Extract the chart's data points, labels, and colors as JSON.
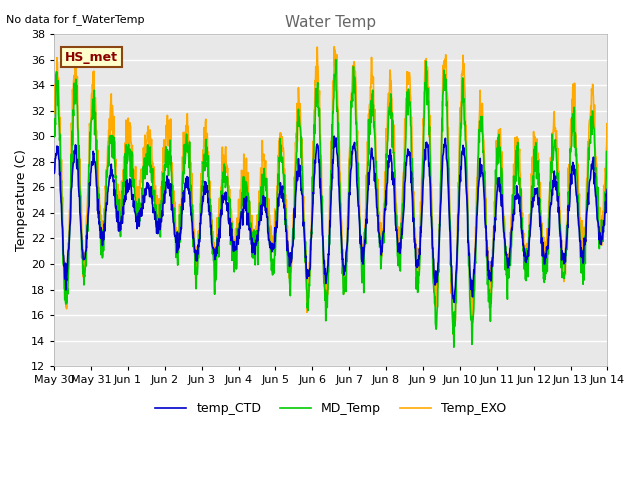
{
  "title": "Water Temp",
  "no_data_text": "No data for f_WaterTemp",
  "hs_met_label": "HS_met",
  "ylabel": "Temperature (C)",
  "ylim": [
    12,
    38
  ],
  "yticks": [
    12,
    14,
    16,
    18,
    20,
    22,
    24,
    26,
    28,
    30,
    32,
    34,
    36,
    38
  ],
  "background_color": "#ffffff",
  "plot_bg_color": "#e8e8e8",
  "grid_color": "#ffffff",
  "line_colors": {
    "temp_CTD": "#0000cc",
    "MD_Temp": "#00cc00",
    "Temp_EXO": "#ffaa00"
  },
  "legend_labels": [
    "temp_CTD",
    "MD_Temp",
    "Temp_EXO"
  ],
  "xtick_labels": [
    "May 30",
    "May 31",
    "Jun 1",
    "Jun 2",
    "Jun 3",
    "Jun 4",
    "Jun 5",
    "Jun 6",
    "Jun 7",
    "Jun 8",
    "Jun 9",
    "Jun 10",
    "Jun 11",
    "Jun 12",
    "Jun 13",
    "Jun 14"
  ],
  "title_color": "#666666",
  "title_fontsize": 11,
  "ylabel_fontsize": 9,
  "tick_fontsize": 8,
  "legend_fontsize": 9,
  "linewidth": 1.2
}
